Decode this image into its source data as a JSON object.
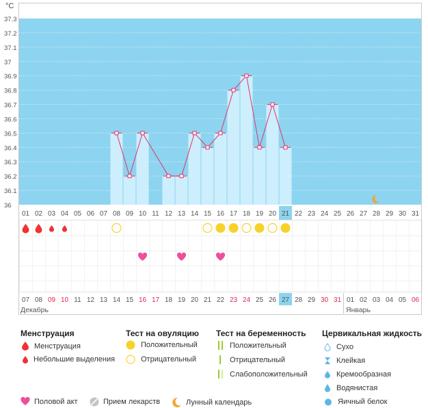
{
  "unit": "°C",
  "chart_data": {
    "type": "bar",
    "ylim": [
      36.0,
      37.3
    ],
    "y_ticks": [
      "37.3",
      "37.2",
      "37.1",
      "37",
      "36.9",
      "36.8",
      "36.7",
      "36.6",
      "36.5",
      "36.4",
      "36.3",
      "36.2",
      "36.1",
      "36"
    ],
    "cycle_days": [
      "01",
      "02",
      "03",
      "04",
      "05",
      "06",
      "07",
      "08",
      "09",
      "10",
      "11",
      "12",
      "13",
      "14",
      "15",
      "16",
      "17",
      "18",
      "19",
      "20",
      "21",
      "22",
      "23",
      "24",
      "25",
      "26",
      "27",
      "28",
      "29",
      "30",
      "31"
    ],
    "current_cycle_day": "21",
    "temperatures": [
      null,
      null,
      null,
      null,
      null,
      null,
      null,
      36.5,
      36.2,
      36.5,
      null,
      36.2,
      36.2,
      36.5,
      36.4,
      36.5,
      36.8,
      36.9,
      36.4,
      36.7,
      36.4,
      null,
      null,
      null,
      null,
      null,
      null,
      null,
      null,
      null,
      null
    ],
    "dashed_segments": [
      [
        10,
        12
      ]
    ],
    "moon_day_index": 27
  },
  "markers": {
    "menstruation": [
      {
        "day_index": 0,
        "type": "heavy"
      },
      {
        "day_index": 1,
        "type": "heavy"
      },
      {
        "day_index": 2,
        "type": "light"
      },
      {
        "day_index": 3,
        "type": "light"
      }
    ],
    "ovulation_tests": [
      {
        "day_index": 7,
        "result": "negative"
      },
      {
        "day_index": 14,
        "result": "negative"
      },
      {
        "day_index": 15,
        "result": "positive"
      },
      {
        "day_index": 16,
        "result": "positive"
      },
      {
        "day_index": 17,
        "result": "negative"
      },
      {
        "day_index": 18,
        "result": "positive"
      },
      {
        "day_index": 19,
        "result": "negative"
      },
      {
        "day_index": 20,
        "result": "positive"
      }
    ],
    "intercourse": [
      9,
      12,
      15
    ]
  },
  "calendar": {
    "dates": [
      "07",
      "08",
      "09",
      "10",
      "11",
      "12",
      "13",
      "14",
      "15",
      "16",
      "17",
      "18",
      "19",
      "20",
      "21",
      "22",
      "23",
      "24",
      "25",
      "26",
      "27",
      "28",
      "29",
      "30",
      "31",
      "01",
      "02",
      "03",
      "04",
      "05",
      "06"
    ],
    "red_dates": [
      "09",
      "10",
      "16",
      "17",
      "23",
      "24",
      "30",
      "31",
      "06"
    ],
    "today": "27",
    "month_left": "Декабрь",
    "month_right": "Январь"
  },
  "legend": {
    "menstruation": {
      "title": "Менструация",
      "items": [
        "Менструация",
        "Небольшие выделения"
      ]
    },
    "ovulation": {
      "title": "Тест на овуляцию",
      "items": [
        "Положительный",
        "Отрицательный"
      ]
    },
    "pregnancy": {
      "title": "Тест на беременность",
      "items": [
        "Положительный",
        "Отрицательный",
        "Слабоположительный"
      ]
    },
    "cervical": {
      "title": "Цервикальная жидкость",
      "items": [
        "Сухо",
        "Клейкая",
        "Кремообразная",
        "Водянистая",
        "Яичный белок"
      ]
    },
    "bottom": [
      "Половой акт",
      "Прием лекарств",
      "Лунный календарь"
    ]
  },
  "colors": {
    "sky": "#8dd4f0",
    "bar": "#cdeefc",
    "line": "#e0316a",
    "menstruation": "#ee3333",
    "ovulation": "#f8d22a",
    "heart": "#ee4f9c",
    "today": "#8ed3ee"
  }
}
